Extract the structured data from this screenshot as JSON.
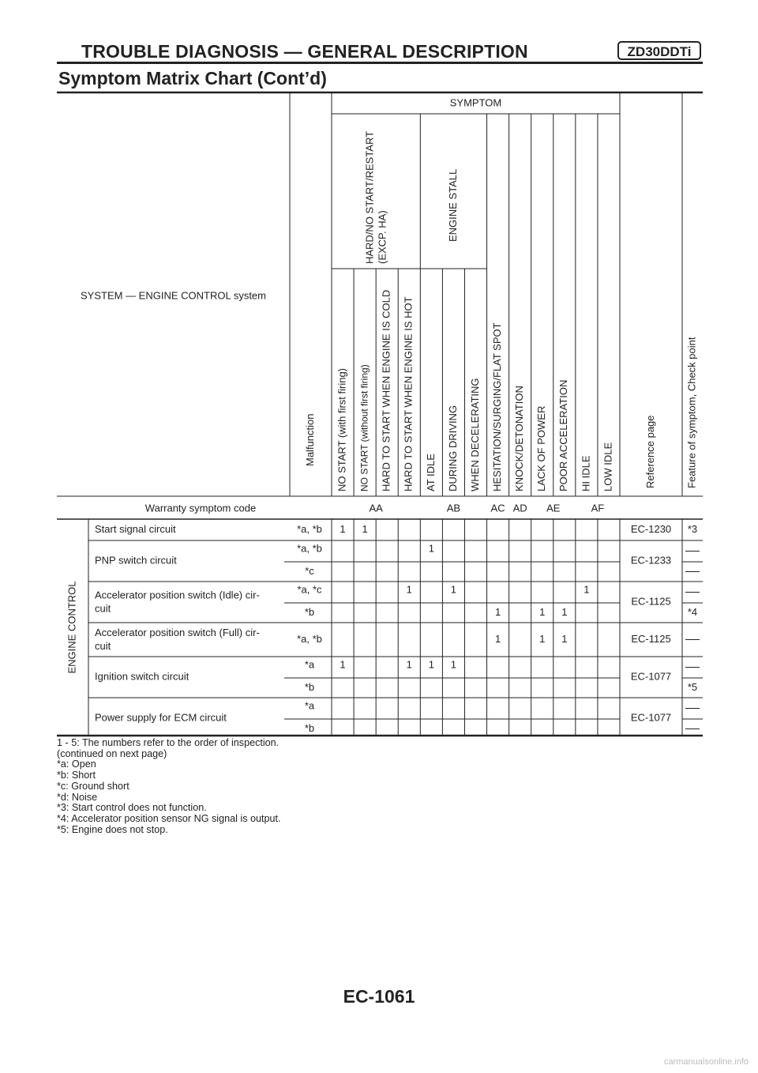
{
  "header": {
    "title": "TROUBLE DIAGNOSIS — GENERAL DESCRIPTION",
    "engine_code": "ZD30DDTi",
    "subtitle": "Symptom Matrix Chart (Cont’d)"
  },
  "table": {
    "system_label": "SYSTEM — ENGINE CONTROL system",
    "malfunction_label": "Malfunction",
    "symptom_label": "SYMPTOM",
    "groups": [
      {
        "label": "HARD/NO START/RESTART",
        "label2": "(EXCP. HA)",
        "span": 4
      },
      {
        "label": "ENGINE STALL",
        "span": 3
      }
    ],
    "columns": [
      "NO START (with first firing)",
      "NO START (without first firing)",
      "HARD TO START WHEN ENGINE IS COLD",
      "HARD TO START WHEN ENGINE IS HOT",
      "AT IDLE",
      "DURING DRIVING",
      "WHEN DECELERATING",
      "HESITATION/SURGING/FLAT SPOT",
      "KNOCK/DETONATION",
      "LACK OF POWER",
      "POOR ACCELERATION",
      "HI IDLE",
      "LOW IDLE"
    ],
    "reference_label": "Reference page",
    "feature_label": "Feature of symptom, Check point",
    "warranty_label": "Warranty symptom code",
    "warranty_codes": [
      {
        "code": "AA",
        "from": 0,
        "span": 4
      },
      {
        "code": "AB",
        "from": 4,
        "span": 3
      },
      {
        "code": "AC",
        "from": 7,
        "span": 1
      },
      {
        "code": "AD",
        "from": 8,
        "span": 1
      },
      {
        "code": "AE",
        "from": 9,
        "span": 2
      },
      {
        "code": "AF",
        "from": 11,
        "span": 2
      }
    ],
    "category": "ENGINE CONTROL",
    "items": [
      {
        "name": "Start signal circuit",
        "name2": "",
        "reference": "EC-1230",
        "rows": [
          {
            "mode": "*a, *b",
            "marks": [
              "1",
              "1",
              "",
              "",
              "",
              "",
              "",
              "",
              "",
              "",
              "",
              "",
              ""
            ],
            "feature": "*3"
          }
        ]
      },
      {
        "name": "PNP switch circuit",
        "name2": "",
        "reference": "EC-1233",
        "rows": [
          {
            "mode": "*a, *b",
            "marks": [
              "",
              "",
              "",
              "",
              "1",
              "",
              "",
              "",
              "",
              "",
              "",
              "",
              ""
            ],
            "feature": ""
          },
          {
            "mode": "*c",
            "marks": [
              "",
              "",
              "",
              "",
              "",
              "",
              "",
              "",
              "",
              "",
              "",
              "",
              ""
            ],
            "feature": ""
          }
        ]
      },
      {
        "name": "Accelerator position switch (Idle) cir-",
        "name2": "cuit",
        "reference": "EC-1125",
        "rows": [
          {
            "mode": "*a, *c",
            "marks": [
              "",
              "",
              "",
              "1",
              "",
              "1",
              "",
              "",
              "",
              "",
              "",
              "1",
              ""
            ],
            "feature": ""
          },
          {
            "mode": "*b",
            "marks": [
              "",
              "",
              "",
              "",
              "",
              "",
              "",
              "1",
              "",
              "1",
              "1",
              "",
              ""
            ],
            "feature": "*4"
          }
        ]
      },
      {
        "name": "Accelerator position switch (Full) cir-",
        "name2": "cuit",
        "reference": "EC-1125",
        "rows": [
          {
            "mode": "*a, *b",
            "marks": [
              "",
              "",
              "",
              "",
              "",
              "",
              "",
              "1",
              "",
              "1",
              "1",
              "",
              ""
            ],
            "feature": ""
          }
        ]
      },
      {
        "name": "Ignition switch circuit",
        "name2": "",
        "reference": "EC-1077",
        "rows": [
          {
            "mode": "*a",
            "marks": [
              "1",
              "",
              "",
              "1",
              "1",
              "1",
              "",
              "",
              "",
              "",
              "",
              "",
              ""
            ],
            "feature": ""
          },
          {
            "mode": "*b",
            "marks": [
              "",
              "",
              "",
              "",
              "",
              "",
              "",
              "",
              "",
              "",
              "",
              "",
              ""
            ],
            "feature": "*5"
          }
        ]
      },
      {
        "name": "Power supply for ECM circuit",
        "name2": "",
        "reference": "EC-1077",
        "rows": [
          {
            "mode": "*a",
            "marks": [
              "",
              "",
              "",
              "",
              "",
              "",
              "",
              "",
              "",
              "",
              "",
              "",
              ""
            ],
            "feature": ""
          },
          {
            "mode": "*b",
            "marks": [
              "",
              "",
              "",
              "",
              "",
              "",
              "",
              "",
              "",
              "",
              "",
              "",
              ""
            ],
            "feature": ""
          }
        ]
      }
    ]
  },
  "notes": [
    "1 - 5: The numbers refer to the order of inspection.",
    "(continued on next page)",
    "*a: Open",
    "*b: Short",
    "*c: Ground short",
    "*d: Noise",
    "*3: Start control does not function.",
    "*4: Accelerator position sensor NG signal is output.",
    "*5: Engine does not stop."
  ],
  "page_number": "EC-1061",
  "watermark": "carmanualsonline.info"
}
